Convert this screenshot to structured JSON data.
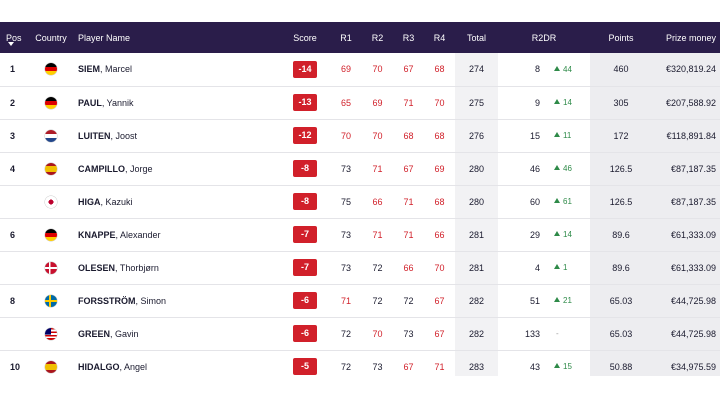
{
  "headers": {
    "pos": "Pos",
    "country": "Country",
    "player": "Player Name",
    "score": "Score",
    "r1": "R1",
    "r2": "R2",
    "r3": "R3",
    "r4": "R4",
    "total": "Total",
    "r2dr": "R2DR",
    "points": "Points",
    "prize": "Prize money"
  },
  "rows": [
    {
      "pos": "1",
      "flag": "de-flag-icon",
      "last": "SIEM",
      "first": ", Marcel",
      "score": "-14",
      "r1": "69",
      "r2": "70",
      "r3": "67",
      "r4": "68",
      "total": "274",
      "r2dr": "8",
      "r2dr_move": "44",
      "points": "460",
      "prize": "€320,819.24"
    },
    {
      "pos": "2",
      "flag": "de-flag-icon",
      "last": "PAUL",
      "first": ", Yannik",
      "score": "-13",
      "r1": "65",
      "r2": "69",
      "r3": "71",
      "r4": "70",
      "total": "275",
      "r2dr": "9",
      "r2dr_move": "14",
      "points": "305",
      "prize": "€207,588.92"
    },
    {
      "pos": "3",
      "flag": "nl-flag-icon",
      "last": "LUITEN",
      "first": ", Joost",
      "score": "-12",
      "r1": "70",
      "r2": "70",
      "r3": "68",
      "r4": "68",
      "total": "276",
      "r2dr": "15",
      "r2dr_move": "11",
      "points": "172",
      "prize": "€118,891.84"
    },
    {
      "pos": "4",
      "flag": "es-flag-icon",
      "last": "CAMPILLO",
      "first": ", Jorge",
      "score": "-8",
      "r1": "73",
      "r2": "71",
      "r3": "67",
      "r4": "69",
      "total": "280",
      "r2dr": "46",
      "r2dr_move": "46",
      "points": "126.5",
      "prize": "€87,187.35"
    },
    {
      "pos": "",
      "flag": "jp-flag-icon",
      "last": "HIGA",
      "first": ", Kazuki",
      "score": "-8",
      "r1": "75",
      "r2": "66",
      "r3": "71",
      "r4": "68",
      "total": "280",
      "r2dr": "60",
      "r2dr_move": "61",
      "points": "126.5",
      "prize": "€87,187.35"
    },
    {
      "pos": "6",
      "flag": "de-flag-icon",
      "last": "KNAPPE",
      "first": ", Alexander",
      "score": "-7",
      "r1": "73",
      "r2": "71",
      "r3": "71",
      "r4": "66",
      "total": "281",
      "r2dr": "29",
      "r2dr_move": "14",
      "points": "89.6",
      "prize": "€61,333.09"
    },
    {
      "pos": "",
      "flag": "dk-flag-icon",
      "last": "OLESEN",
      "first": ", Thorbjørn",
      "score": "-7",
      "r1": "73",
      "r2": "72",
      "r3": "66",
      "r4": "70",
      "total": "281",
      "r2dr": "4",
      "r2dr_move": "1",
      "points": "89.6",
      "prize": "€61,333.09"
    },
    {
      "pos": "8",
      "flag": "se-flag-icon",
      "last": "FORSSTRÖM",
      "first": ", Simon",
      "score": "-6",
      "r1": "71",
      "r2": "72",
      "r3": "72",
      "r4": "67",
      "total": "282",
      "r2dr": "51",
      "r2dr_move": "21",
      "points": "65.03",
      "prize": "€44,725.98"
    },
    {
      "pos": "",
      "flag": "my-flag-icon",
      "last": "GREEN",
      "first": ", Gavin",
      "score": "-6",
      "r1": "72",
      "r2": "70",
      "r3": "73",
      "r4": "67",
      "total": "282",
      "r2dr": "133",
      "r2dr_move": "-",
      "points": "65.03",
      "prize": "€44,725.98"
    },
    {
      "pos": "10",
      "flag": "es-flag-icon",
      "last": "HIDALGO",
      "first": ", Angel",
      "score": "-5",
      "r1": "72",
      "r2": "73",
      "r3": "67",
      "r4": "71",
      "total": "283",
      "r2dr": "43",
      "r2dr_move": "15",
      "points": "50.88",
      "prize": "€34,975.59"
    }
  ]
}
